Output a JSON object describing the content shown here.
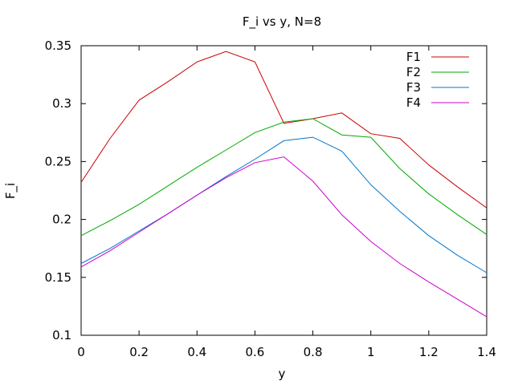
{
  "chart_data": {
    "type": "line",
    "title": "F_i vs y, N=8",
    "xlabel": "y",
    "ylabel": "F_i",
    "xlim": [
      0,
      1.4
    ],
    "ylim": [
      0.1,
      0.35
    ],
    "xticks": [
      "0",
      "0.2",
      "0.4",
      "0.6",
      "0.8",
      "1",
      "1.2",
      "1.4"
    ],
    "yticks": [
      "0.1",
      "0.15",
      "0.2",
      "0.25",
      "0.3",
      "0.35"
    ],
    "grid": false,
    "legend_position": "top-right",
    "x": [
      0,
      0.1,
      0.2,
      0.3,
      0.4,
      0.5,
      0.6,
      0.7,
      0.8,
      0.9,
      1.0,
      1.1,
      1.2,
      1.3,
      1.4
    ],
    "series": [
      {
        "name": "F1",
        "color": "#cc0000",
        "values": [
          0.232,
          0.27,
          0.303,
          0.319,
          0.336,
          0.345,
          0.336,
          0.283,
          0.287,
          0.292,
          0.274,
          0.27,
          0.247,
          0.228,
          0.21
        ]
      },
      {
        "name": "F2",
        "color": "#00aa00",
        "values": [
          0.186,
          0.199,
          0.213,
          0.229,
          0.245,
          0.26,
          0.275,
          0.284,
          0.287,
          0.273,
          0.271,
          0.244,
          0.222,
          0.204,
          0.187
        ]
      },
      {
        "name": "F3",
        "color": "#0077cc",
        "values": [
          0.162,
          0.175,
          0.19,
          0.205,
          0.221,
          0.237,
          0.252,
          0.268,
          0.271,
          0.259,
          0.23,
          0.207,
          0.186,
          0.169,
          0.154
        ]
      },
      {
        "name": "F4",
        "color": "#cc00cc",
        "values": [
          0.159,
          0.173,
          0.189,
          0.205,
          0.221,
          0.236,
          0.249,
          0.254,
          0.233,
          0.204,
          0.181,
          0.162,
          0.146,
          0.131,
          0.116
        ]
      }
    ]
  }
}
